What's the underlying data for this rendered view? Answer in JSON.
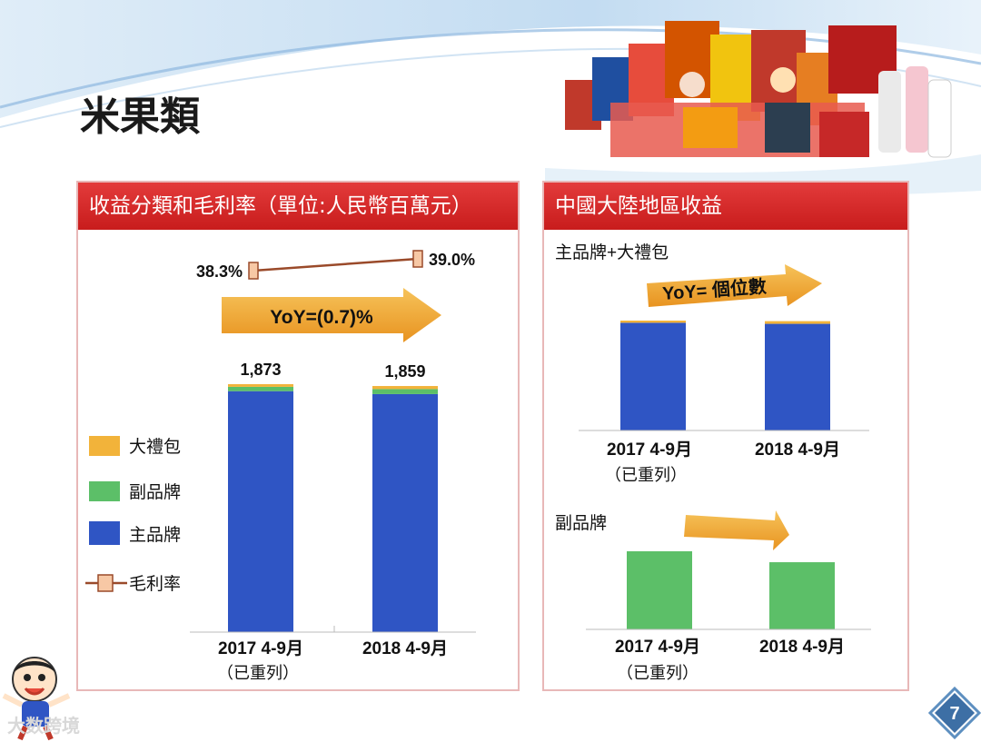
{
  "slide_title": "米果類",
  "page_number": "7",
  "watermark": "大数跨境",
  "colors": {
    "header_red": "#d42a2a",
    "blue_bar": "#2f55c4",
    "green_bar": "#5cbf68",
    "orange_bar": "#f2b33a",
    "arrow_orange": "#f0a52a",
    "margin_line": "#9a4a2a"
  },
  "left_panel": {
    "header": "收益分類和毛利率（單位:人民幣百萬元）",
    "yoy_label": "YoY=(0.7)%",
    "legend": [
      {
        "label": "大禮包",
        "color": "#f2b33a"
      },
      {
        "label": "副品牌",
        "color": "#5cbf68"
      },
      {
        "label": "主品牌",
        "color": "#2f55c4"
      },
      {
        "label": "毛利率",
        "color": "#9a4a2a"
      }
    ]
  },
  "right_panel": {
    "header": "中國大陸地區收益",
    "top_chart_label": "主品牌+大禮包",
    "top_yoy_label": "YoY= 個位數",
    "bottom_chart_label": "副品牌"
  },
  "chart_data": [
    {
      "type": "bar",
      "title": "收益分類和毛利率",
      "stacked": true,
      "categories": [
        "2017 4-9月",
        "2018 4-9月"
      ],
      "category_sublabels": [
        "（已重列）",
        ""
      ],
      "totals": [
        1873,
        1859
      ],
      "total_labels": [
        "1,873",
        "1,859"
      ],
      "series": [
        {
          "name": "主品牌",
          "values": [
            1820,
            1798
          ]
        },
        {
          "name": "副品牌",
          "values": [
            33,
            38
          ]
        },
        {
          "name": "大禮包",
          "values": [
            20,
            23
          ]
        }
      ],
      "line_series": {
        "name": "毛利率",
        "values": [
          38.3,
          39.0
        ],
        "labels": [
          "38.3%",
          "39.0%"
        ]
      },
      "ylim": [
        0,
        1873
      ]
    },
    {
      "type": "bar",
      "title": "主品牌+大禮包",
      "categories": [
        "2017 4-9月",
        "2018 4-9月"
      ],
      "category_sublabels": [
        "（已重列）",
        ""
      ],
      "series": [
        {
          "name": "主品牌",
          "values": [
            100,
            99
          ]
        },
        {
          "name": "大禮包",
          "values": [
            2,
            2.5
          ]
        }
      ],
      "ylim": [
        0,
        102
      ]
    },
    {
      "type": "bar",
      "title": "副品牌",
      "categories": [
        "2017 4-9月",
        "2018 4-9月"
      ],
      "category_sublabels": [
        "（已重列）",
        ""
      ],
      "series": [
        {
          "name": "副品牌",
          "values": [
            100,
            86
          ]
        }
      ],
      "ylim": [
        0,
        100
      ]
    }
  ]
}
